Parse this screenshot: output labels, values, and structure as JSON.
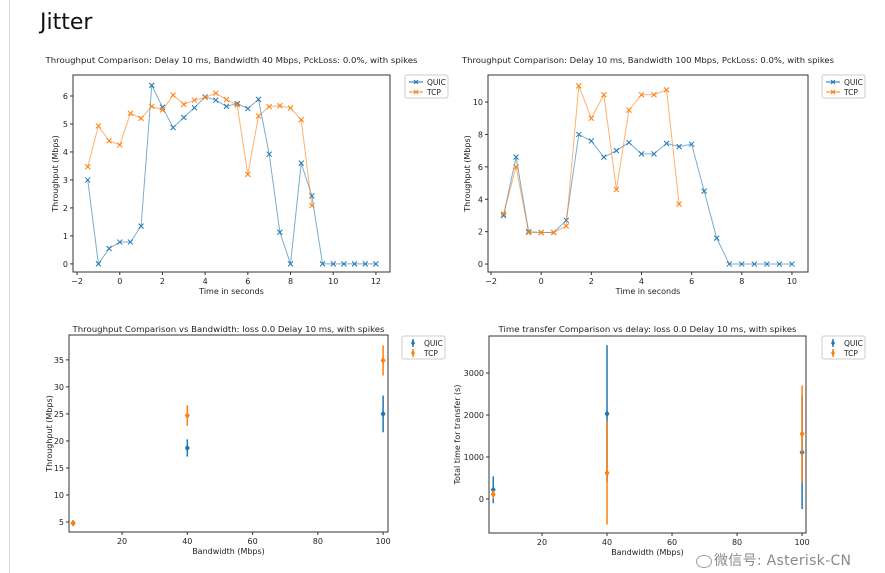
{
  "page": {
    "title": "Jitter"
  },
  "watermark": "微信号: Asterisk-CN",
  "colors": {
    "QUIC": "#1f77b4",
    "TCP": "#ff7f0e"
  },
  "chart_data": [
    {
      "type": "line",
      "title": "Throughput Comparison: Delay 10 ms, Bandwidth 40 Mbps, PckLoss: 0.0%, with spikes",
      "xlabel": "Time in seconds",
      "ylabel": "Throughput (Mbps)",
      "xlim": [
        -2.19,
        12.66
      ],
      "ylim": [
        -0.29,
        6.75
      ],
      "xticks": [
        -2,
        0,
        2,
        4,
        6,
        8,
        10,
        12
      ],
      "yticks": [
        0,
        1,
        2,
        3,
        4,
        5,
        6
      ],
      "marker": "x",
      "grid": false,
      "legend": "outside-top-right",
      "series": [
        {
          "name": "QUIC",
          "x": [
            -1.5,
            -1,
            -0.5,
            0,
            0.5,
            1,
            1.5,
            2,
            2.5,
            3,
            3.5,
            4,
            4.5,
            5,
            5.5,
            6,
            6.5,
            7,
            7.5,
            8,
            8.5,
            9,
            9.5,
            10,
            10.5,
            11,
            11.5,
            12
          ],
          "y": [
            3.0,
            0,
            0.55,
            0.78,
            0.78,
            1.35,
            6.38,
            5.6,
            4.87,
            5.23,
            5.58,
            5.97,
            5.85,
            5.63,
            5.73,
            5.55,
            5.88,
            3.92,
            1.13,
            0,
            3.6,
            2.43,
            0,
            0,
            0,
            0,
            0,
            0
          ]
        },
        {
          "name": "TCP",
          "x": [
            -1.5,
            -1,
            -0.5,
            0,
            0.5,
            1,
            1.5,
            2,
            2.5,
            3,
            3.5,
            4,
            4.5,
            5,
            5.5,
            6,
            6.5,
            7,
            7.5,
            8,
            8.5,
            9
          ],
          "y": [
            3.47,
            4.93,
            4.4,
            4.25,
            5.38,
            5.2,
            5.63,
            5.5,
            6.03,
            5.7,
            5.85,
            5.95,
            6.1,
            5.87,
            5.68,
            3.2,
            5.28,
            5.62,
            5.65,
            5.57,
            5.15,
            2.08
          ]
        }
      ]
    },
    {
      "type": "line",
      "title": "Throughput Comparison: Delay 10 ms, Bandwidth 100 Mbps, PckLoss: 0.0%, with spikes",
      "xlabel": "Time in seconds",
      "ylabel": "Throughput (Mbps)",
      "xlim": [
        -2.12,
        10.64
      ],
      "ylim": [
        -0.49,
        11.67
      ],
      "xticks": [
        -2,
        0,
        2,
        4,
        6,
        8,
        10
      ],
      "yticks": [
        0,
        2,
        4,
        6,
        8,
        10
      ],
      "marker": "x",
      "grid": false,
      "legend": "outside-top-right",
      "series": [
        {
          "name": "QUIC",
          "x": [
            -1.5,
            -1,
            -0.5,
            0,
            0.5,
            1,
            1.5,
            2,
            2.5,
            3,
            3.5,
            4,
            4.5,
            5,
            5.5,
            6,
            6.5,
            7,
            7.5,
            8,
            8.5,
            9,
            9.5,
            10
          ],
          "y": [
            3.0,
            6.6,
            2.0,
            1.95,
            1.95,
            2.7,
            8.0,
            7.6,
            6.6,
            7.0,
            7.5,
            6.8,
            6.8,
            7.45,
            7.25,
            7.4,
            4.5,
            1.6,
            0,
            0,
            0,
            0,
            0,
            0
          ]
        },
        {
          "name": "TCP",
          "x": [
            -1.5,
            -1,
            -0.5,
            0,
            0.5,
            1,
            1.5,
            2,
            2.5,
            3,
            3.5,
            4,
            4.5,
            5,
            5.5
          ],
          "y": [
            3.1,
            6.0,
            1.95,
            1.95,
            1.95,
            2.35,
            11.0,
            9.0,
            10.45,
            4.6,
            9.5,
            10.45,
            10.45,
            10.75,
            3.7
          ]
        }
      ]
    },
    {
      "type": "scatter",
      "title": "Throughput Comparison vs Bandwidth: loss 0.0 Delay 10 ms, with spikes",
      "xlabel": "Bandwidth (Mbps)",
      "ylabel": "Throughput (Mbps)",
      "xlim": [
        3.74,
        101.5
      ],
      "ylim": [
        3.15,
        39.6
      ],
      "xticks": [
        20,
        40,
        60,
        80,
        100
      ],
      "yticks": [
        5,
        10,
        15,
        20,
        25,
        30,
        35
      ],
      "marker": "diamond",
      "errorbars": true,
      "grid": false,
      "legend": "outside-top-right",
      "series": [
        {
          "name": "QUIC",
          "x": [
            5,
            40,
            100
          ],
          "y": [
            4.8,
            18.7,
            25.0
          ],
          "err": [
            0.4,
            1.6,
            3.4
          ]
        },
        {
          "name": "TCP",
          "x": [
            5,
            40,
            100
          ],
          "y": [
            4.8,
            24.7,
            34.9
          ],
          "err": [
            0.5,
            1.9,
            2.8
          ]
        }
      ]
    },
    {
      "type": "scatter",
      "title": "Time transfer Comparison vs delay: loss 0.0 Delay 10 ms, with spikes",
      "xlabel": "Bandwidth (Mbps)",
      "ylabel": "Total time for transfer (s)",
      "xlim": [
        3.7,
        101.2
      ],
      "ylim": [
        -810,
        3881
      ],
      "xticks": [
        20,
        40,
        60,
        80,
        100
      ],
      "yticks": [
        0,
        1000,
        2000,
        3000
      ],
      "marker": "diamond",
      "errorbars": true,
      "grid": false,
      "legend": "outside-top-right",
      "series": [
        {
          "name": "QUIC",
          "x": [
            5,
            40,
            100
          ],
          "y": [
            220,
            2030,
            1110
          ],
          "err": [
            320,
            1630,
            1350
          ]
        },
        {
          "name": "TCP",
          "x": [
            5,
            40,
            100
          ],
          "y": [
            110,
            620,
            1550
          ],
          "err": [
            100,
            1230,
            1150
          ]
        }
      ]
    }
  ]
}
